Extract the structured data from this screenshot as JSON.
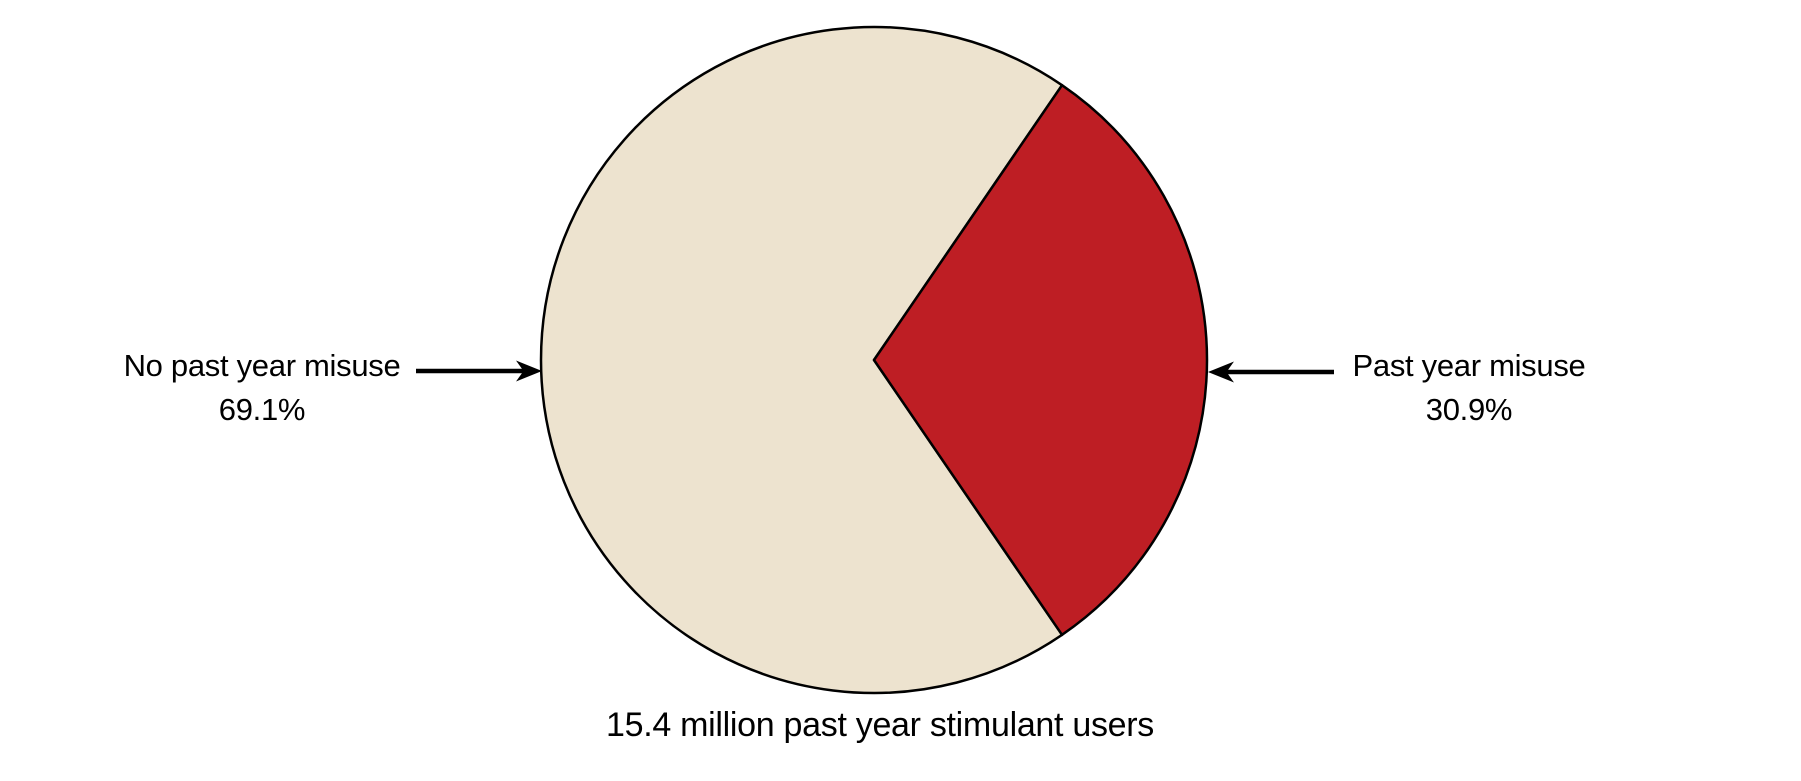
{
  "chart_data": {
    "type": "pie",
    "caption": "15.4 million past year stimulant users",
    "slices": [
      {
        "label": "No past year misuse",
        "pct_label": "69.1%",
        "value": 69.1,
        "color": "#ede3cf"
      },
      {
        "label": "Past year misuse",
        "pct_label": "30.9%",
        "value": 30.9,
        "color": "#be1e24"
      }
    ],
    "outline_color": "#000000",
    "layout_hints": {
      "legend_position": "callout-arrows-left-right",
      "misuse_slice_centered_deg": 0,
      "grid": "off"
    }
  },
  "arrows": {
    "left_arrow_name": "left-callout-arrow",
    "right_arrow_name": "right-callout-arrow",
    "color": "#000000"
  }
}
